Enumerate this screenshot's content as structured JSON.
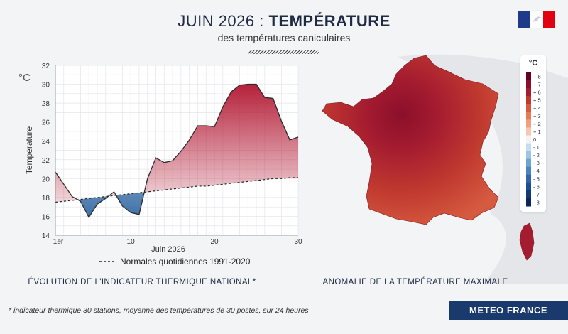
{
  "header": {
    "title_prefix": "JUIN 2026 : ",
    "title_bold": "TEMPÉRATURE",
    "subtitle": "des températures caniculaires"
  },
  "chart_data": {
    "type": "area",
    "x": [
      1,
      2,
      3,
      4,
      5,
      6,
      7,
      8,
      9,
      10,
      11,
      12,
      13,
      14,
      15,
      16,
      17,
      18,
      19,
      20,
      21,
      22,
      23,
      24,
      25,
      26,
      27,
      28,
      29,
      30
    ],
    "series": [
      {
        "values": [
          20.7,
          19.4,
          18.1,
          17.6,
          15.9,
          17.3,
          17.9,
          18.6,
          17.1,
          16.4,
          16.2,
          20.0,
          22.2,
          21.7,
          21.9,
          22.9,
          24.1,
          25.6,
          25.6,
          25.5,
          27.6,
          29.2,
          29.9,
          30.0,
          30.0,
          28.6,
          28.5,
          26.1,
          24.1,
          24.4
        ]
      },
      {
        "name": "Normales quotidiennes 1991-2020",
        "values": [
          17.5,
          17.6,
          17.7,
          17.8,
          17.9,
          18.0,
          18.1,
          18.2,
          18.3,
          18.4,
          18.5,
          18.6,
          18.7,
          18.8,
          18.9,
          19.0,
          19.1,
          19.2,
          19.2,
          19.3,
          19.4,
          19.5,
          19.6,
          19.7,
          19.8,
          19.9,
          20.0,
          20.0,
          20.1,
          20.1
        ]
      }
    ],
    "xticks": [
      "1er",
      "10",
      "20",
      "30"
    ],
    "yticks": [
      14,
      16,
      18,
      20,
      22,
      24,
      26,
      28,
      30,
      32
    ],
    "ylim": [
      14,
      32
    ],
    "xlim": [
      1,
      30
    ],
    "xlabel": "Juin 2026",
    "ylabel": "Température",
    "unit": "°C",
    "legend": "Normales quotidiennes 1991-2020",
    "colors": {
      "above": "#b5213a",
      "below": "#3f72a8",
      "normal": "#222222"
    },
    "grid": true
  },
  "map": {
    "unit": "°C",
    "scale_labels": [
      "+ 8",
      "+ 7",
      "+ 6",
      "+ 5",
      "+ 4",
      "+ 3",
      "+ 2",
      "+ 1",
      "0",
      "- 1",
      "- 2",
      "- 3",
      "- 4",
      "- 5",
      "- 6",
      "- 7",
      "- 8"
    ],
    "scale_colors": [
      "#67001f",
      "#8b0f2a",
      "#a51c30",
      "#c0392f",
      "#d55a3f",
      "#e67b55",
      "#f0a07c",
      "#f7c8ad",
      "#f3f3f3",
      "#c6dcef",
      "#9ec5e3",
      "#6fa4d2",
      "#4a85c0",
      "#2f67a8",
      "#1f4f8e",
      "#143a73",
      "#0b2658"
    ]
  },
  "captions": {
    "left": "ÉVOLUTION DE L'INDICATEUR THERMIQUE NATIONAL*",
    "right": "ANOMALIE DE LA TEMPÉRATURE MAXIMALE",
    "footnote": "* indicateur thermique 30 stations, moyenne des températures de 30 postes, sur 24 heures"
  },
  "brand": "METEO FRANCE"
}
